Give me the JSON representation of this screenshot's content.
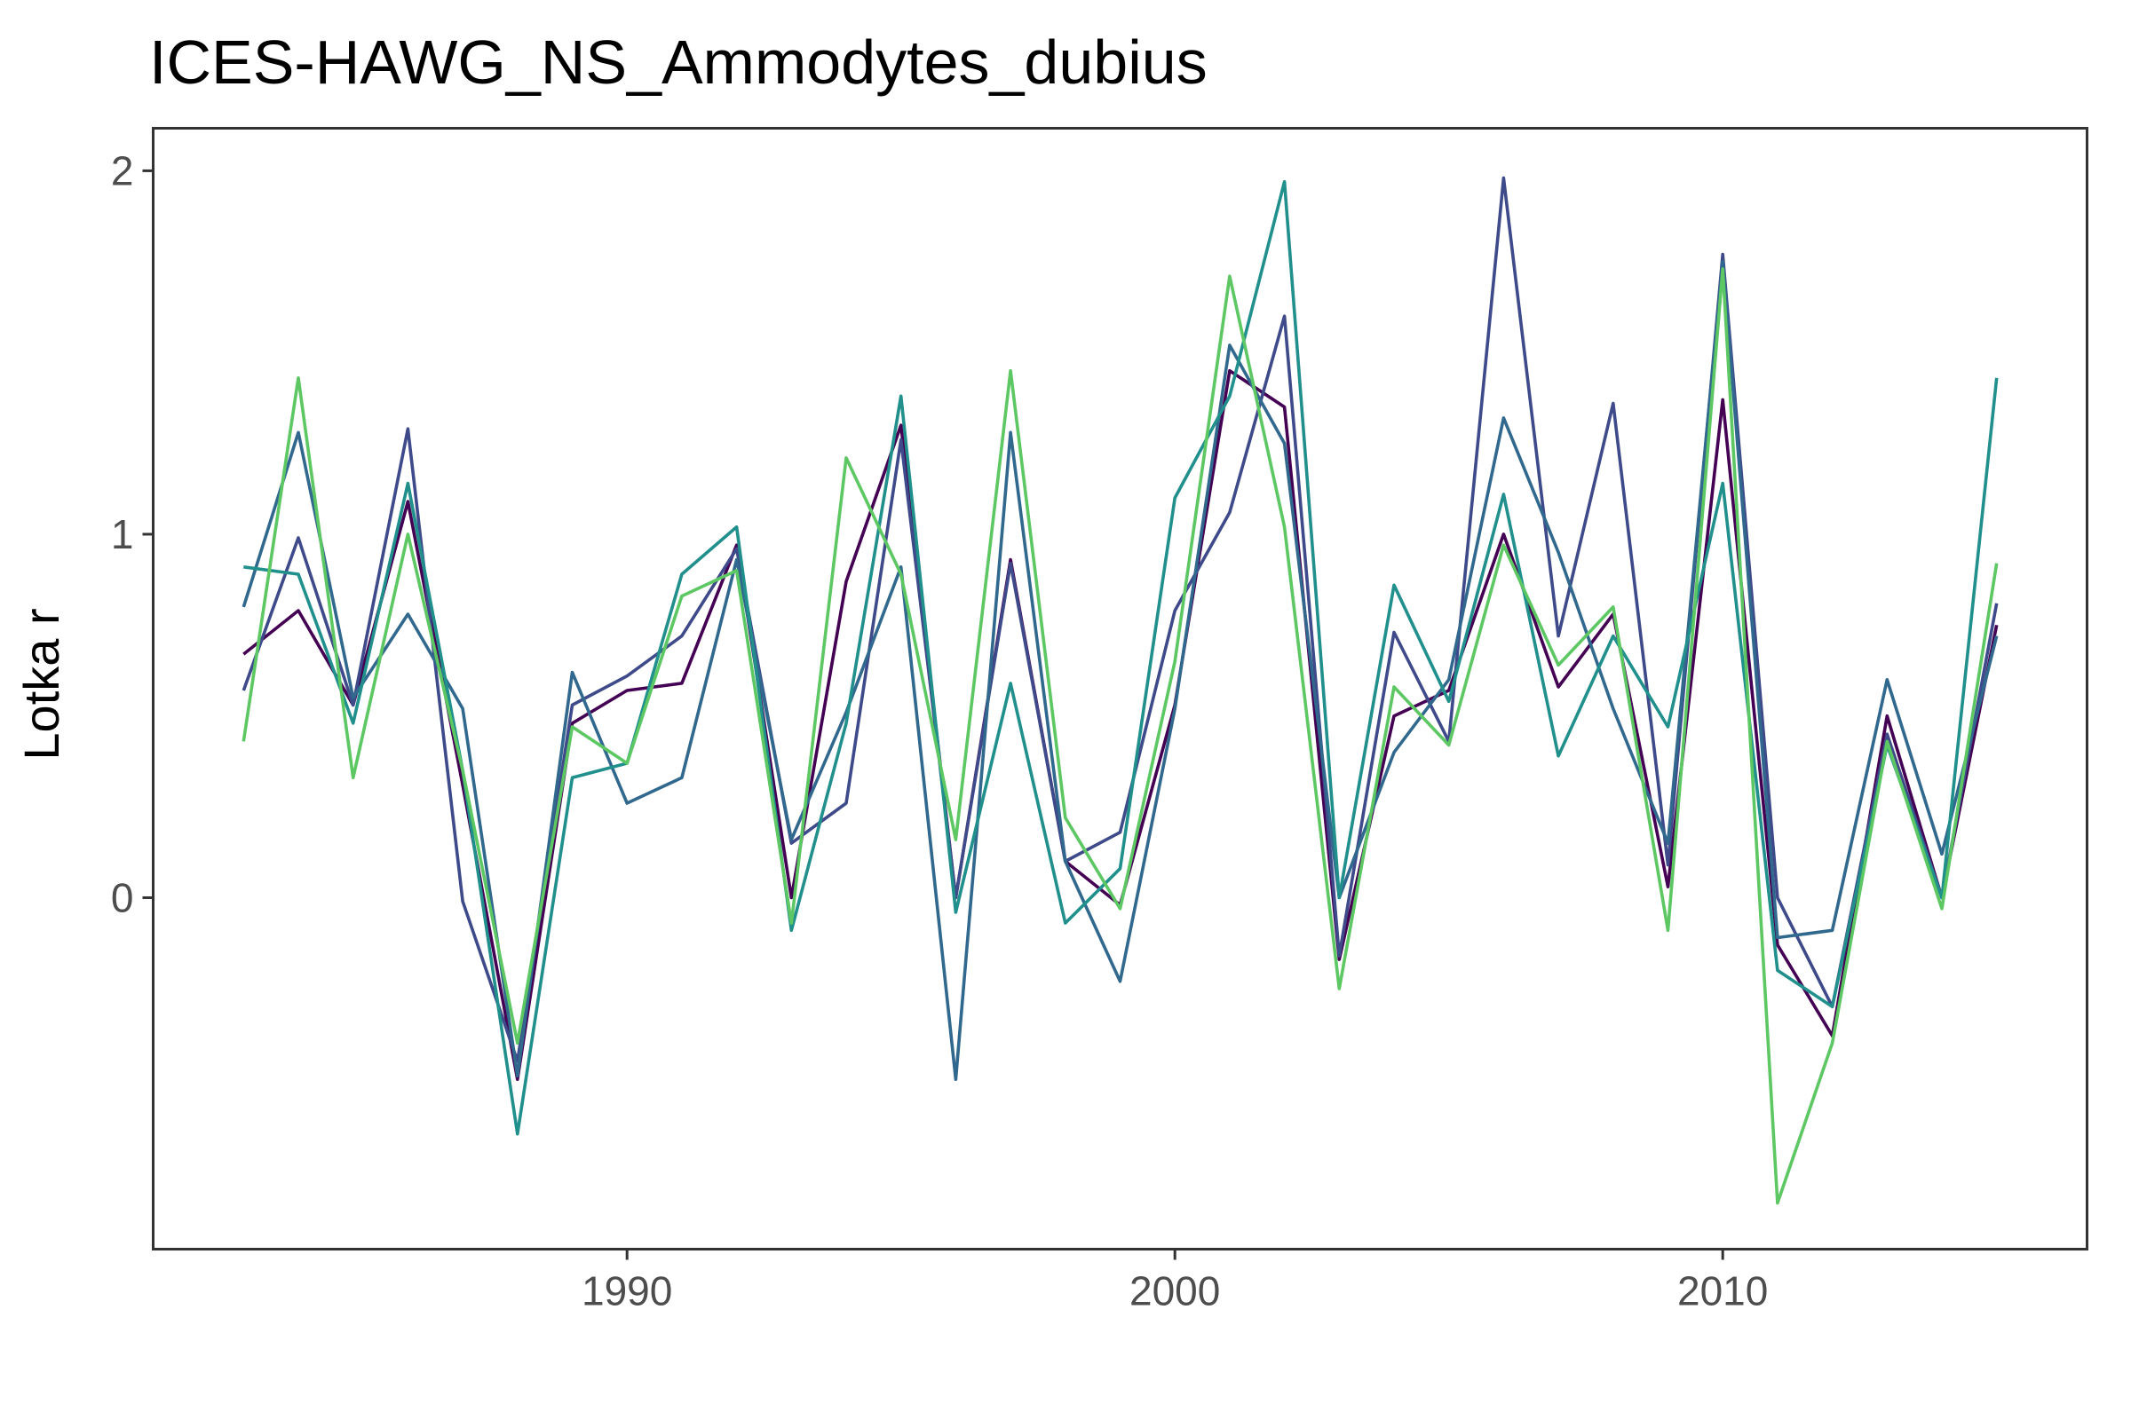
{
  "chart_data": {
    "type": "line",
    "title": "ICES-HAWG_NS_Ammodytes_dubius",
    "xlabel": "",
    "ylabel": "Lotka r",
    "xlim": [
      1981.35,
      2016.65
    ],
    "ylim": [
      -0.967,
      2.117
    ],
    "x_ticks": [
      {
        "value": 1990,
        "label": "1990"
      },
      {
        "value": 2000,
        "label": "2000"
      },
      {
        "value": 2010,
        "label": "2010"
      }
    ],
    "y_ticks": [
      {
        "value": 0,
        "label": "0"
      },
      {
        "value": 1,
        "label": "1"
      },
      {
        "value": 2,
        "label": "2"
      }
    ],
    "grid": false,
    "legend": "none",
    "x": [
      1983,
      1984,
      1985,
      1986,
      1987,
      1988,
      1989,
      1990,
      1991,
      1992,
      1993,
      1994,
      1995,
      1996,
      1997,
      1998,
      1999,
      2000,
      2001,
      2002,
      2003,
      2004,
      2005,
      2006,
      2007,
      2008,
      2009,
      2010,
      2011,
      2012,
      2013,
      2014,
      2015
    ],
    "series": [
      {
        "color": "#440154",
        "values": [
          0.67,
          0.79,
          0.53,
          1.09,
          0.31,
          -0.5,
          0.48,
          0.57,
          0.59,
          0.97,
          0.0,
          0.87,
          1.3,
          0.0,
          0.93,
          0.1,
          -0.02,
          0.53,
          1.45,
          1.35,
          -0.17,
          0.5,
          0.57,
          1.0,
          0.58,
          0.78,
          0.03,
          1.37,
          -0.13,
          -0.38,
          0.5,
          0.0,
          0.75
        ]
      },
      {
        "color": "#3E4A89",
        "values": [
          0.57,
          0.99,
          0.53,
          1.29,
          -0.01,
          -0.45,
          0.53,
          0.61,
          0.72,
          0.96,
          0.15,
          0.26,
          1.26,
          0.0,
          0.92,
          0.1,
          0.18,
          0.79,
          1.06,
          1.6,
          -0.16,
          0.73,
          0.43,
          1.98,
          0.72,
          1.36,
          0.09,
          1.77,
          0.0,
          -0.3,
          0.45,
          0.0,
          0.81
        ]
      },
      {
        "color": "#31688E",
        "values": [
          0.8,
          1.28,
          0.55,
          0.78,
          0.52,
          -0.49,
          0.62,
          0.26,
          0.33,
          0.93,
          0.16,
          0.51,
          0.91,
          -0.5,
          1.28,
          0.1,
          -0.23,
          0.52,
          1.52,
          1.25,
          0.0,
          0.4,
          0.6,
          1.32,
          0.95,
          0.52,
          0.15,
          1.75,
          -0.11,
          -0.09,
          0.6,
          0.12,
          0.72
        ]
      },
      {
        "color": "#21908C",
        "values": [
          0.91,
          0.89,
          0.48,
          1.14,
          0.35,
          -0.65,
          0.33,
          0.37,
          0.89,
          1.02,
          -0.09,
          0.48,
          1.38,
          -0.04,
          0.59,
          -0.07,
          0.08,
          1.1,
          1.38,
          1.97,
          0.0,
          0.86,
          0.54,
          1.11,
          0.39,
          0.72,
          0.47,
          1.14,
          -0.2,
          -0.3,
          0.42,
          0.0,
          1.43
        ]
      },
      {
        "color": "#5DC863",
        "values": [
          0.43,
          1.43,
          0.33,
          1.0,
          0.35,
          -0.4,
          0.47,
          0.37,
          0.83,
          0.9,
          -0.07,
          1.21,
          0.89,
          0.16,
          1.45,
          0.22,
          -0.03,
          0.65,
          1.71,
          1.02,
          -0.25,
          0.58,
          0.42,
          0.97,
          0.64,
          0.8,
          -0.09,
          1.73,
          -0.84,
          -0.4,
          0.43,
          -0.03,
          0.92
        ]
      }
    ]
  }
}
